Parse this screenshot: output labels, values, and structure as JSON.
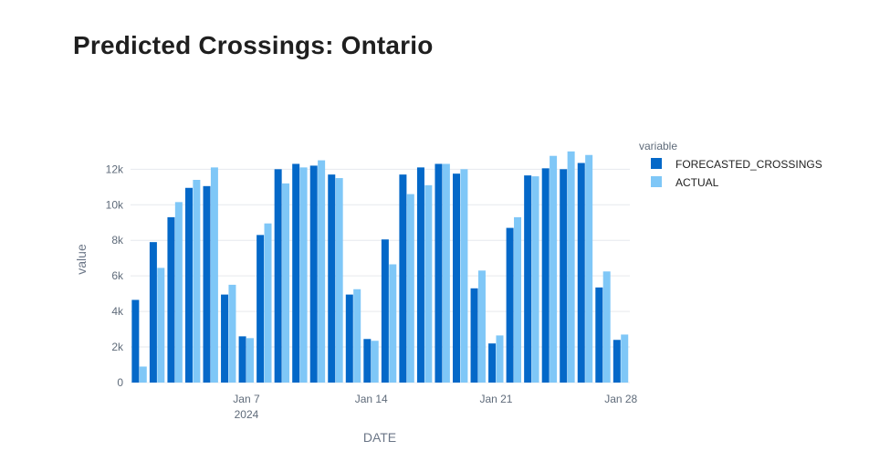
{
  "chart_data": {
    "type": "bar",
    "title": "Predicted Crossings: Ontario",
    "xlabel": "DATE",
    "ylabel": "value",
    "ylim": [
      0,
      13300
    ],
    "y_ticks": [
      0,
      2000,
      4000,
      6000,
      8000,
      10000,
      12000
    ],
    "y_tick_labels": [
      "0",
      "2k",
      "4k",
      "6k",
      "8k",
      "10k",
      "12k"
    ],
    "x_tick_labels": [
      {
        "label": "Jan 7",
        "sub": "2024",
        "date": "2024-01-07"
      },
      {
        "label": "Jan 14",
        "sub": "",
        "date": "2024-01-14"
      },
      {
        "label": "Jan 21",
        "sub": "",
        "date": "2024-01-21"
      },
      {
        "label": "Jan 28",
        "sub": "",
        "date": "2024-01-28"
      }
    ],
    "legend_title": "variable",
    "legend_position": "top-right",
    "grid": true,
    "x": [
      "2024-01-01",
      "2024-01-02",
      "2024-01-03",
      "2024-01-04",
      "2024-01-05",
      "2024-01-06",
      "2024-01-07",
      "2024-01-08",
      "2024-01-09",
      "2024-01-10",
      "2024-01-11",
      "2024-01-12",
      "2024-01-13",
      "2024-01-14",
      "2024-01-15",
      "2024-01-16",
      "2024-01-17",
      "2024-01-18",
      "2024-01-19",
      "2024-01-20",
      "2024-01-21",
      "2024-01-22",
      "2024-01-23",
      "2024-01-24",
      "2024-01-25",
      "2024-01-26",
      "2024-01-27",
      "2024-01-28"
    ],
    "series": [
      {
        "name": "FORECASTED_CROSSINGS",
        "color": "#0468c8",
        "values": [
          4650,
          7900,
          9300,
          10950,
          11050,
          4950,
          2600,
          8300,
          12000,
          12300,
          12200,
          11700,
          4950,
          2450,
          8050,
          11700,
          12100,
          12300,
          11750,
          5300,
          2200,
          8700,
          11650,
          12050,
          12000,
          12350,
          5350,
          2400
        ]
      },
      {
        "name": "ACTUAL",
        "color": "#7fc7f7",
        "values": [
          900,
          6450,
          10150,
          11400,
          12100,
          5500,
          2500,
          8950,
          11200,
          12100,
          12500,
          11500,
          5250,
          2350,
          6650,
          10600,
          11100,
          12300,
          12000,
          6300,
          2650,
          9300,
          11600,
          12750,
          13000,
          12800,
          6250,
          2700
        ]
      }
    ]
  }
}
